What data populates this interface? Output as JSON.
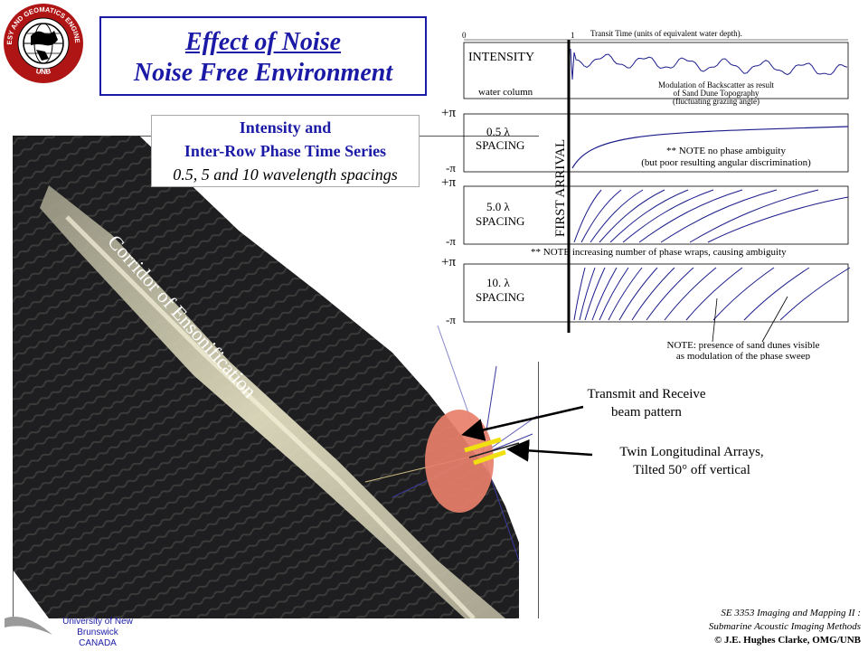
{
  "logo": {
    "ring_text_top": "GEODESY AND GEOMATICS ENGINEERING",
    "ring_text_bottom": "UNB"
  },
  "title": {
    "line1": "Effect of Noise",
    "line2": "Noise Free Environment"
  },
  "subtitle": {
    "line1": "Intensity and",
    "line2": "Inter-Row Phase Time Series",
    "line3": "0.5, 5 and 10 wavelength spacings"
  },
  "time_series": {
    "axis_zero": "0",
    "axis_one": "1",
    "axis_title": "Transit Time  (units of equivalent water depth).",
    "first_arrival": "FIRST ARRIVAL",
    "plus_pi": "+π",
    "minus_pi": "-π",
    "intensity_label": "INTENSITY",
    "water_column": "water column",
    "modulation_note_1": "Modulation of Backscatter as result",
    "modulation_note_2": "of Sand Dune Topography",
    "modulation_note_3": "(fluctuating grazing angle)",
    "spacing_05_1": "0.5  λ",
    "spacing_05_2": "SPACING",
    "note_no_ambiguity_1": "** NOTE no phase ambiguity",
    "note_no_ambiguity_2": "(but poor resulting angular discrimination)",
    "spacing_5_1": "5.0  λ",
    "spacing_5_2": "SPACING",
    "note_wraps": "**  NOTE increasing number of phase wraps, causing ambiguity",
    "spacing_10_1": "10.  λ",
    "spacing_10_2": "SPACING",
    "note_dunes_1": "NOTE: presence of sand dunes visible",
    "note_dunes_2": "as modulation of the phase sweep"
  },
  "image": {
    "corridor_label": "Corridor of Ensonification"
  },
  "annotations": {
    "beam_1": "Transmit and Receive",
    "beam_2": "beam pattern",
    "arrays_1": "Twin Longitudinal Arrays,",
    "arrays_2": "Tilted 50° off vertical"
  },
  "footer": {
    "course": "SE 3353 Imaging and Mapping II :",
    "subject": "Submarine Acoustic Imaging Methods",
    "copyright": "© J.E. Hughes Clarke, OMG/UNB"
  },
  "university": {
    "name": "University of New Brunswick",
    "country": "CANADA"
  },
  "colors": {
    "title_blue": "#1a1aa6",
    "plot_line": "#1c1c8c",
    "beam_fill": "#e8806a",
    "swath_dark": "#1b1b1d",
    "dune_light": "#d8d4b8"
  }
}
